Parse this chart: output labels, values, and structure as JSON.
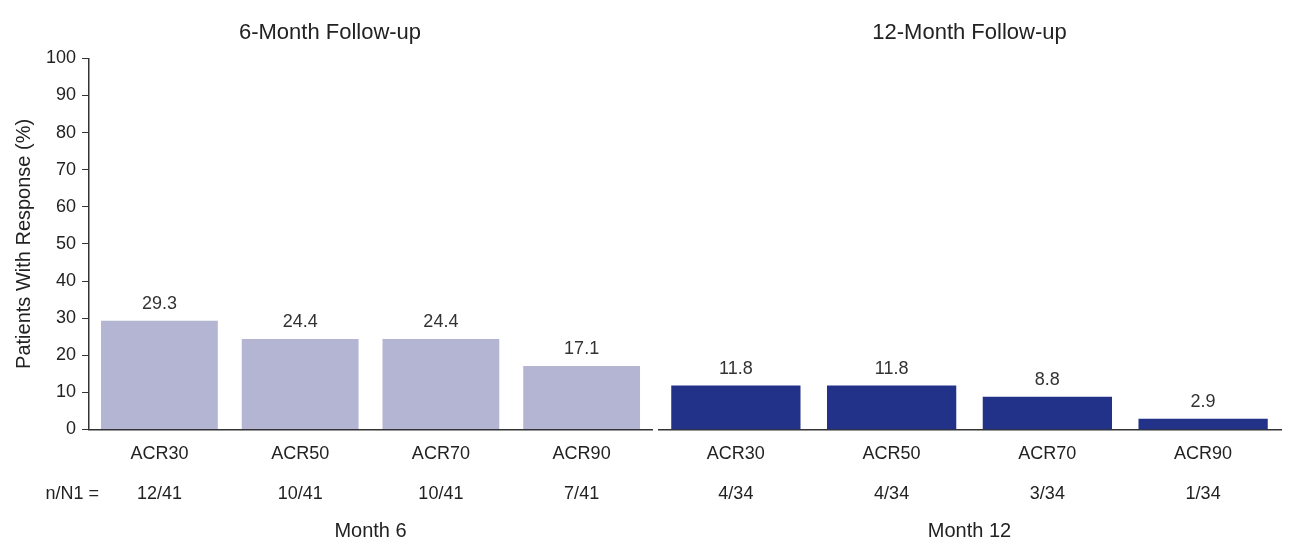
{
  "chart_data": [
    {
      "type": "bar",
      "title": "6-Month Follow-up",
      "xlabel": "Month 6",
      "ylabel": "Patients With Response (%)",
      "categories": [
        "ACR30",
        "ACR50",
        "ACR70",
        "ACR90"
      ],
      "series": [
        {
          "color": "#b3b5d3",
          "values": [
            29.3,
            24.4,
            24.4,
            17.1
          ]
        }
      ],
      "ylim": [
        0,
        100
      ],
      "yticks": [
        0,
        10,
        20,
        30,
        40,
        50,
        60,
        70,
        80,
        90,
        100
      ],
      "grid": false,
      "legend": false,
      "data_labels": true,
      "annotations": [
        "n/N1 =",
        "12/41",
        "10/41",
        "10/41",
        "7/41"
      ]
    },
    {
      "type": "bar",
      "title": "12-Month Follow-up",
      "xlabel": "Month 12",
      "categories": [
        "ACR30",
        "ACR50",
        "ACR70",
        "ACR90"
      ],
      "series": [
        {
          "color": "#233289",
          "values": [
            11.8,
            11.8,
            8.8,
            2.9
          ]
        }
      ],
      "ylim": [
        0,
        100
      ],
      "yticks": [
        0,
        10,
        20,
        30,
        40,
        50,
        60,
        70,
        80,
        90,
        100
      ],
      "tick_labels": "x",
      "grid": false,
      "legend": false,
      "data_labels": true,
      "annotations": [
        "4/34",
        "4/34",
        "3/34",
        "1/34"
      ]
    }
  ]
}
